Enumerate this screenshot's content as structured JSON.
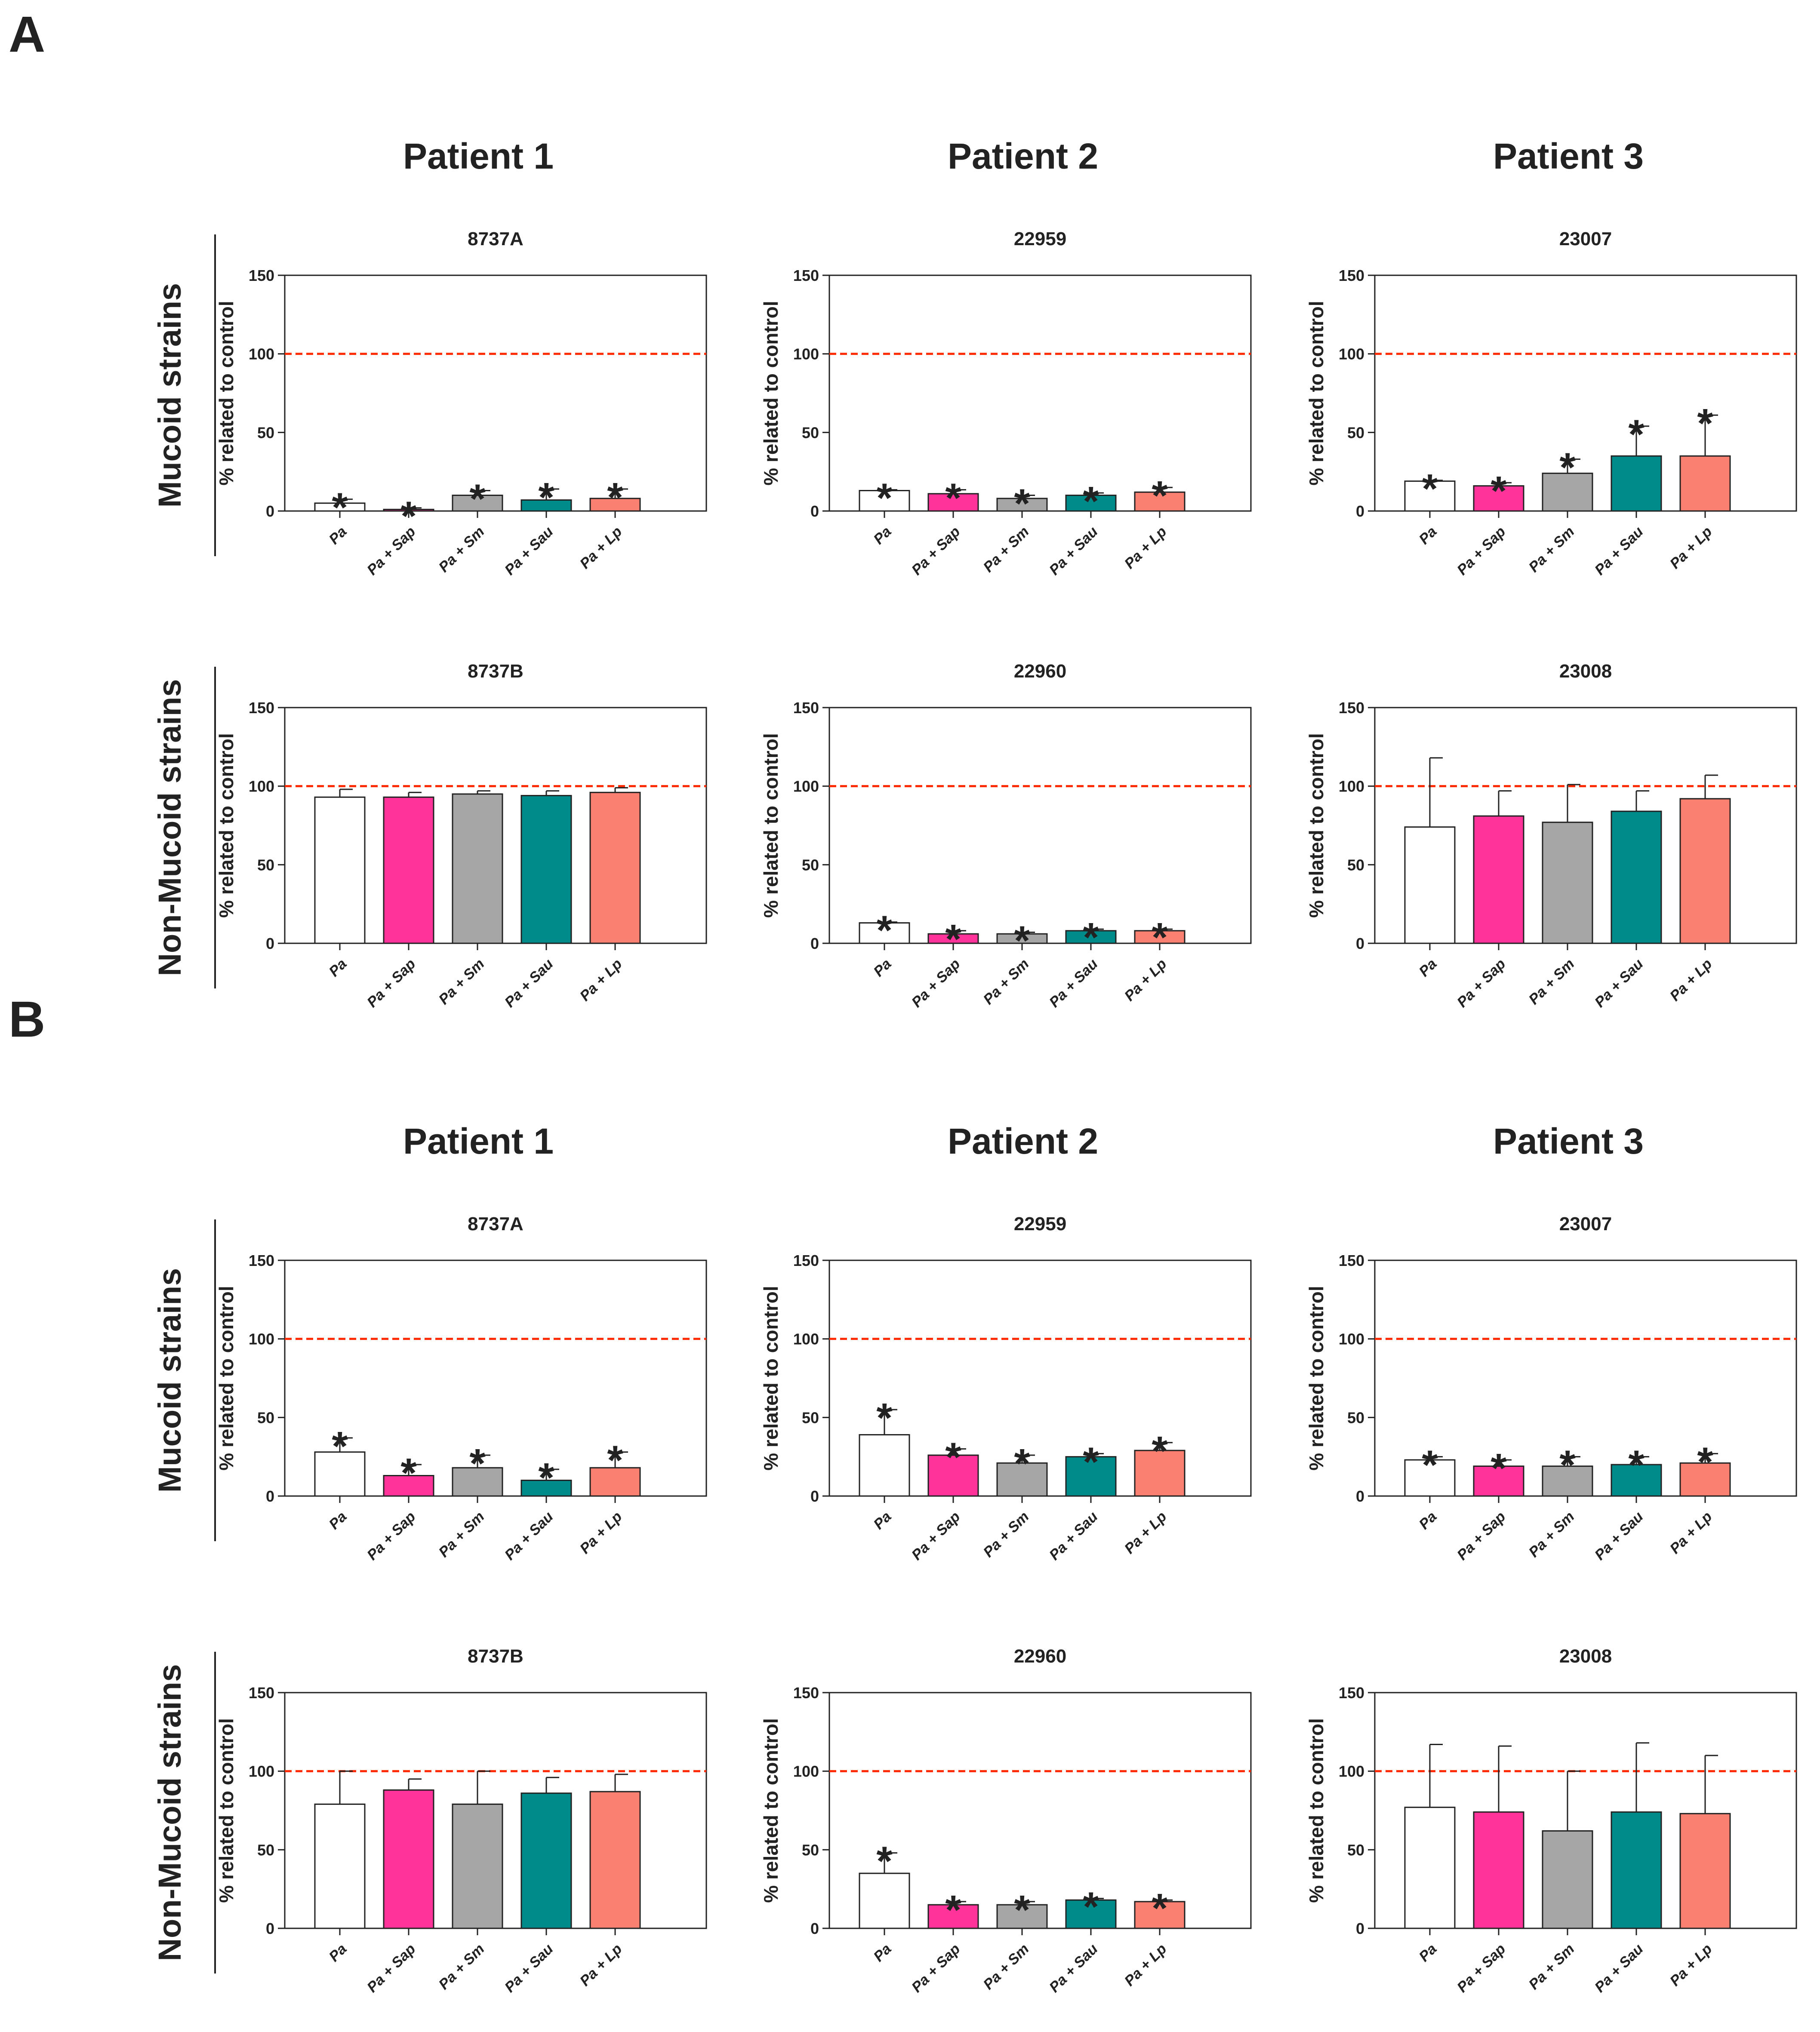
{
  "figure": {
    "panels": [
      {
        "label": "A",
        "patients": [
          "Patient 1",
          "Patient 2",
          "Patient 3"
        ],
        "rows": [
          "Mucoid strains",
          "Non-Mucoid strains"
        ]
      },
      {
        "label": "B",
        "patients": [
          "Patient 1",
          "Patient 2",
          "Patient 3"
        ],
        "rows": [
          "Mucoid strains",
          "Non-Mucoid strains"
        ]
      }
    ]
  },
  "colors": {
    "Pa": "#ffffff",
    "Pa + Sap": "#ff3399",
    "Pa + Sm": "#a6a6a6",
    "Pa + Sau": "#008b8b",
    "Pa + Lp": "#fa8072",
    "control_line": "#ff2a00",
    "axis": "#222222"
  },
  "chart_data": [
    {
      "type": "bar",
      "panel": "A",
      "patient": "Patient 1",
      "strain_type": "Mucoid strains",
      "title": "8737A",
      "ylabel": "% related to control",
      "ylim": [
        0,
        150
      ],
      "yticks": [
        0,
        50,
        100,
        150
      ],
      "reference_line": 100,
      "categories": [
        "Pa",
        "Pa + Sap",
        "Pa + Sm",
        "Pa + Sau",
        "Pa + Lp"
      ],
      "values": [
        5,
        1,
        10,
        7,
        8
      ],
      "errors": [
        2.5,
        1,
        3,
        7,
        6
      ],
      "significant": [
        true,
        true,
        true,
        true,
        true
      ],
      "significance_marker": "*"
    },
    {
      "type": "bar",
      "panel": "A",
      "patient": "Patient 2",
      "strain_type": "Mucoid strains",
      "title": "22959",
      "ylabel": "% related to control",
      "ylim": [
        0,
        150
      ],
      "yticks": [
        0,
        50,
        100,
        150
      ],
      "reference_line": 100,
      "categories": [
        "Pa",
        "Pa + Sap",
        "Pa + Sm",
        "Pa + Sau",
        "Pa + Lp"
      ],
      "values": [
        13,
        11,
        8,
        10,
        12
      ],
      "errors": [
        0.5,
        2.5,
        2,
        1.5,
        3
      ],
      "significant": [
        true,
        true,
        true,
        true,
        true
      ],
      "significance_marker": "*"
    },
    {
      "type": "bar",
      "panel": "A",
      "patient": "Patient 3",
      "strain_type": "Mucoid strains",
      "title": "23007",
      "ylabel": "% related to control",
      "ylim": [
        0,
        150
      ],
      "yticks": [
        0,
        50,
        100,
        150
      ],
      "reference_line": 100,
      "categories": [
        "Pa",
        "Pa + Sap",
        "Pa + Sm",
        "Pa + Sau",
        "Pa + Lp"
      ],
      "values": [
        19,
        16,
        24,
        35,
        35
      ],
      "errors": [
        0.5,
        2,
        9,
        19,
        26
      ],
      "significant": [
        true,
        true,
        true,
        true,
        true
      ],
      "significance_marker": "*"
    },
    {
      "type": "bar",
      "panel": "A",
      "patient": "Patient 1",
      "strain_type": "Non-Mucoid strains",
      "title": "8737B",
      "ylabel": "% related to control",
      "ylim": [
        0,
        150
      ],
      "yticks": [
        0,
        50,
        100,
        150
      ],
      "reference_line": 100,
      "categories": [
        "Pa",
        "Pa + Sap",
        "Pa + Sm",
        "Pa + Sau",
        "Pa + Lp"
      ],
      "values": [
        93,
        93,
        95,
        94,
        96
      ],
      "errors": [
        5,
        3,
        2,
        3,
        3
      ],
      "significant": [
        false,
        false,
        false,
        false,
        false
      ],
      "significance_marker": "*"
    },
    {
      "type": "bar",
      "panel": "A",
      "patient": "Patient 2",
      "strain_type": "Non-Mucoid strains",
      "title": "22960",
      "ylabel": "% related to control",
      "ylim": [
        0,
        150
      ],
      "yticks": [
        0,
        50,
        100,
        150
      ],
      "reference_line": 100,
      "categories": [
        "Pa",
        "Pa + Sap",
        "Pa + Sm",
        "Pa + Sau",
        "Pa + Lp"
      ],
      "values": [
        13,
        6,
        6,
        8,
        8
      ],
      "errors": [
        0.5,
        2,
        1,
        1,
        1
      ],
      "significant": [
        true,
        true,
        true,
        true,
        true
      ],
      "significance_marker": "*"
    },
    {
      "type": "bar",
      "panel": "A",
      "patient": "Patient 3",
      "strain_type": "Non-Mucoid strains",
      "title": "23008",
      "ylabel": "% related to control",
      "ylim": [
        0,
        150
      ],
      "yticks": [
        0,
        50,
        100,
        150
      ],
      "reference_line": 100,
      "categories": [
        "Pa",
        "Pa + Sap",
        "Pa + Sm",
        "Pa + Sau",
        "Pa + Lp"
      ],
      "values": [
        74,
        81,
        77,
        84,
        92
      ],
      "errors": [
        44,
        16,
        24,
        13,
        15
      ],
      "significant": [
        false,
        false,
        false,
        false,
        false
      ],
      "significance_marker": "*"
    },
    {
      "type": "bar",
      "panel": "B",
      "patient": "Patient 1",
      "strain_type": "Mucoid strains",
      "title": "8737A",
      "ylabel": "% related to control",
      "ylim": [
        0,
        150
      ],
      "yticks": [
        0,
        50,
        100,
        150
      ],
      "reference_line": 100,
      "categories": [
        "Pa",
        "Pa + Sap",
        "Pa + Sm",
        "Pa + Sau",
        "Pa + Lp"
      ],
      "values": [
        28,
        13,
        18,
        10,
        18
      ],
      "errors": [
        9,
        7,
        8,
        7,
        10
      ],
      "significant": [
        true,
        true,
        true,
        true,
        true
      ],
      "significance_marker": "*"
    },
    {
      "type": "bar",
      "panel": "B",
      "patient": "Patient 2",
      "strain_type": "Mucoid strains",
      "title": "22959",
      "ylabel": "% related to control",
      "ylim": [
        0,
        150
      ],
      "yticks": [
        0,
        50,
        100,
        150
      ],
      "reference_line": 100,
      "categories": [
        "Pa",
        "Pa + Sap",
        "Pa + Sm",
        "Pa + Sau",
        "Pa + Lp"
      ],
      "values": [
        39,
        26,
        21,
        25,
        29
      ],
      "errors": [
        16,
        4,
        5,
        2,
        5
      ],
      "significant": [
        true,
        true,
        true,
        true,
        true
      ],
      "significance_marker": "*"
    },
    {
      "type": "bar",
      "panel": "B",
      "patient": "Patient 3",
      "strain_type": "Mucoid strains",
      "title": "23007",
      "ylabel": "% related to control",
      "ylim": [
        0,
        150
      ],
      "yticks": [
        0,
        50,
        100,
        150
      ],
      "reference_line": 100,
      "categories": [
        "Pa",
        "Pa + Sap",
        "Pa + Sm",
        "Pa + Sau",
        "Pa + Lp"
      ],
      "values": [
        23,
        19,
        19,
        20,
        21
      ],
      "errors": [
        2,
        4,
        6,
        5,
        6
      ],
      "significant": [
        true,
        true,
        true,
        true,
        true
      ],
      "significance_marker": "*"
    },
    {
      "type": "bar",
      "panel": "B",
      "patient": "Patient 1",
      "strain_type": "Non-Mucoid strains",
      "title": "8737B",
      "ylabel": "% related to control",
      "ylim": [
        0,
        150
      ],
      "yticks": [
        0,
        50,
        100,
        150
      ],
      "reference_line": 100,
      "categories": [
        "Pa",
        "Pa + Sap",
        "Pa + Sm",
        "Pa + Sau",
        "Pa + Lp"
      ],
      "values": [
        79,
        88,
        79,
        86,
        87
      ],
      "errors": [
        21,
        7,
        21,
        10,
        11
      ],
      "significant": [
        false,
        false,
        false,
        false,
        false
      ],
      "significance_marker": "*"
    },
    {
      "type": "bar",
      "panel": "B",
      "patient": "Patient 2",
      "strain_type": "Non-Mucoid strains",
      "title": "22960",
      "ylabel": "% related to control",
      "ylim": [
        0,
        150
      ],
      "yticks": [
        0,
        50,
        100,
        150
      ],
      "reference_line": 100,
      "categories": [
        "Pa",
        "Pa + Sap",
        "Pa + Sm",
        "Pa + Sau",
        "Pa + Lp"
      ],
      "values": [
        35,
        15,
        15,
        18,
        17
      ],
      "errors": [
        13,
        2,
        2,
        1,
        1
      ],
      "significant": [
        true,
        true,
        true,
        true,
        true
      ],
      "significance_marker": "*"
    },
    {
      "type": "bar",
      "panel": "B",
      "patient": "Patient 3",
      "strain_type": "Non-Mucoid strains",
      "title": "23008",
      "ylabel": "% related to control",
      "ylim": [
        0,
        150
      ],
      "yticks": [
        0,
        50,
        100,
        150
      ],
      "reference_line": 100,
      "categories": [
        "Pa",
        "Pa + Sap",
        "Pa + Sm",
        "Pa + Sau",
        "Pa + Lp"
      ],
      "values": [
        77,
        74,
        62,
        74,
        73
      ],
      "errors": [
        40,
        42,
        38,
        44,
        37
      ],
      "significant": [
        false,
        false,
        false,
        false,
        false
      ],
      "significance_marker": "*"
    }
  ]
}
